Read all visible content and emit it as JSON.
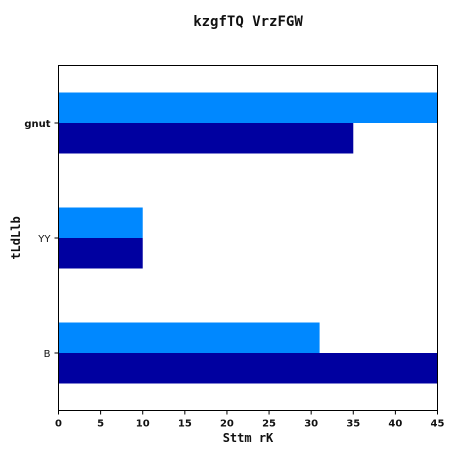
{
  "chart_data": {
    "type": "bar",
    "orientation": "horizontal",
    "title": "kzgfTQ VrzFGW",
    "xlabel": "Sttm rK",
    "ylabel": "tLdLlb",
    "categories": [
      "gnut",
      "YY",
      "B"
    ],
    "category_bold": [
      true,
      false,
      false
    ],
    "xlim": [
      0,
      45
    ],
    "xticks": [
      0,
      5,
      10,
      15,
      20,
      25,
      30,
      35,
      40,
      45
    ],
    "grid": false,
    "legend": "none",
    "series": [
      {
        "values": [
          45,
          10,
          31
        ],
        "color": "#0088ff"
      },
      {
        "values": [
          35,
          10,
          45
        ],
        "color": "#0000a0"
      }
    ]
  }
}
